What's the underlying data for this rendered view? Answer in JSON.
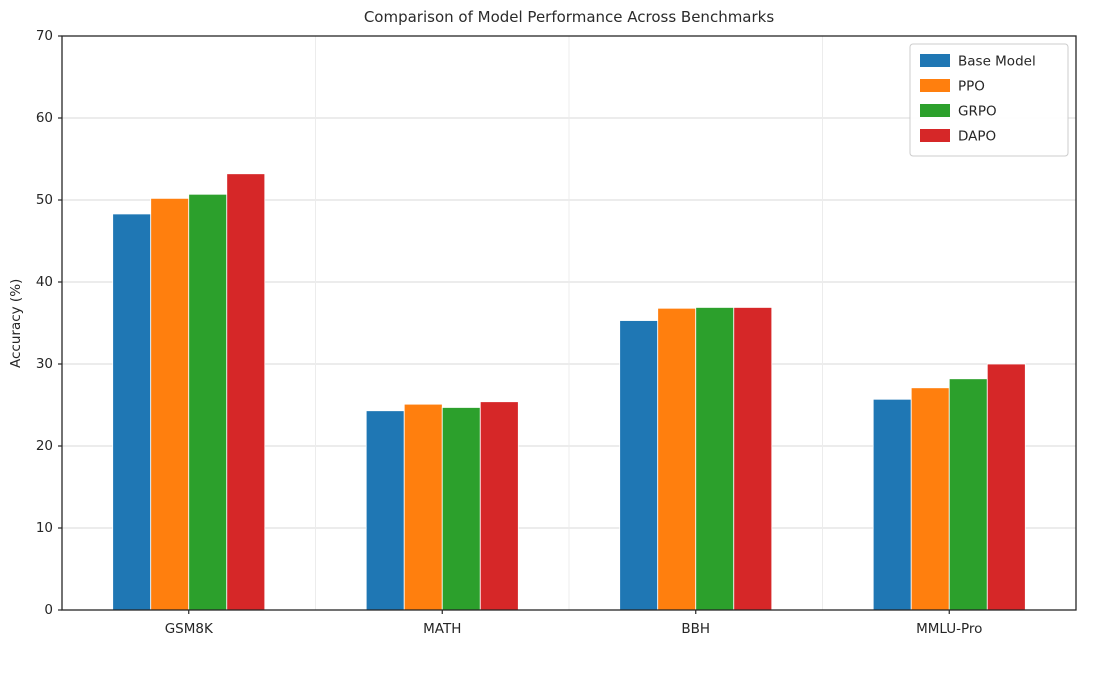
{
  "chart_data": {
    "type": "bar",
    "title": "Comparison of Model Performance Across Benchmarks",
    "xlabel": "",
    "ylabel": "Accuracy (%)",
    "categories": [
      "GSM8K",
      "MATH",
      "BBH",
      "MMLU-Pro"
    ],
    "series": [
      {
        "name": "Base Model",
        "color": "#1f77b4",
        "values": [
          48.3,
          24.3,
          35.3,
          25.7
        ]
      },
      {
        "name": "PPO",
        "color": "#ff7f0e",
        "values": [
          50.2,
          25.1,
          36.8,
          27.1
        ]
      },
      {
        "name": "GRPO",
        "color": "#2ca02c",
        "values": [
          50.7,
          24.7,
          36.9,
          28.2
        ]
      },
      {
        "name": "DAPO",
        "color": "#d62728",
        "values": [
          53.2,
          25.4,
          36.9,
          30.0
        ]
      }
    ],
    "ylim": [
      0,
      70
    ],
    "yticks": [
      0,
      10,
      20,
      30,
      40,
      50,
      60,
      70
    ],
    "grid": true,
    "legend_position": "upper right",
    "colors": {
      "grid_line": "#d9d9d9",
      "minor_grid_line": "#ececec",
      "spine": "#262626",
      "tick_text": "#262626",
      "legend_border": "#cccccc"
    }
  }
}
